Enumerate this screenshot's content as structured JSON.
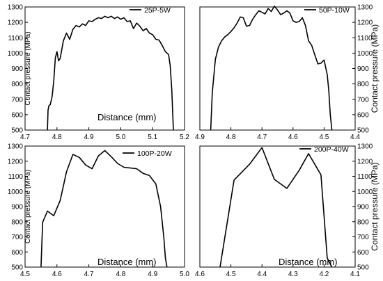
{
  "chart_data": [
    {
      "id": "p1",
      "type": "line",
      "xlabel": "Distance (mm)",
      "ylabel": "Contact pressure (MPa)",
      "xlim": [
        4.7,
        5.2
      ],
      "ylim": [
        500,
        1300
      ],
      "xticks": [
        "4.7",
        "4.8",
        "4.9",
        "5.0",
        "5.1",
        "5.2"
      ],
      "yticks": [
        "500",
        "600",
        "700",
        "800",
        "900",
        "1000",
        "1100",
        "1200",
        "1300"
      ],
      "series": [
        {
          "name": "25P-5W",
          "color": "#000000",
          "x": [
            4.77,
            4.772,
            4.775,
            4.779,
            4.785,
            4.79,
            4.795,
            4.8,
            4.805,
            4.81,
            4.82,
            4.83,
            4.835,
            4.84,
            4.85,
            4.86,
            4.87,
            4.88,
            4.89,
            4.9,
            4.91,
            4.92,
            4.93,
            4.94,
            4.95,
            4.96,
            4.97,
            4.98,
            4.99,
            5.0,
            5.01,
            5.02,
            5.03,
            5.04,
            5.05,
            5.06,
            5.07,
            5.08,
            5.09,
            5.1,
            5.11,
            5.12,
            5.13,
            5.14,
            5.15,
            5.155,
            5.16,
            5.163,
            5.165
          ],
          "y": [
            500,
            630,
            660,
            665,
            720,
            820,
            970,
            1010,
            950,
            965,
            1080,
            1130,
            1110,
            1090,
            1155,
            1180,
            1170,
            1190,
            1180,
            1210,
            1205,
            1220,
            1230,
            1225,
            1240,
            1230,
            1240,
            1225,
            1235,
            1220,
            1230,
            1205,
            1210,
            1160,
            1195,
            1175,
            1145,
            1160,
            1130,
            1120,
            1090,
            1085,
            1050,
            1010,
            990,
            920,
            760,
            600,
            500
          ]
        }
      ]
    },
    {
      "id": "p2",
      "type": "line",
      "xlabel": "",
      "ylabel": "Contact pressure (MPa)",
      "xlim": [
        4.9,
        4.4
      ],
      "ylim": [
        500,
        1300
      ],
      "xticks": [
        "4.9",
        "4.8",
        "4.7",
        "4.6",
        "4.5",
        "4.4"
      ],
      "yticks": [
        "500",
        "600",
        "700",
        "800",
        "900",
        "1000",
        "1100",
        "1200",
        "1300"
      ],
      "series": [
        {
          "name": "50P-10W",
          "color": "#000000",
          "x": [
            4.865,
            4.86,
            4.85,
            4.84,
            4.83,
            4.82,
            4.81,
            4.8,
            4.79,
            4.78,
            4.77,
            4.76,
            4.75,
            4.74,
            4.73,
            4.72,
            4.71,
            4.7,
            4.69,
            4.68,
            4.67,
            4.66,
            4.65,
            4.64,
            4.63,
            4.62,
            4.61,
            4.6,
            4.59,
            4.58,
            4.57,
            4.56,
            4.55,
            4.54,
            4.53,
            4.52,
            4.51,
            4.5,
            4.49,
            4.485,
            4.48,
            4.475
          ],
          "y": [
            500,
            740,
            960,
            1040,
            1080,
            1105,
            1120,
            1140,
            1165,
            1195,
            1235,
            1230,
            1175,
            1180,
            1220,
            1250,
            1275,
            1265,
            1255,
            1290,
            1270,
            1305,
            1280,
            1250,
            1260,
            1275,
            1260,
            1210,
            1200,
            1205,
            1230,
            1180,
            1080,
            1050,
            990,
            930,
            935,
            955,
            860,
            760,
            600,
            500
          ]
        }
      ]
    },
    {
      "id": "p3",
      "type": "line",
      "xlabel": "Distance (mm)",
      "ylabel": "Contact pressure (MPa)",
      "xlim": [
        4.5,
        5.0
      ],
      "ylim": [
        500,
        1300
      ],
      "xticks": [
        "4.5",
        "4.6",
        "4.7",
        "4.8",
        "4.9",
        "5.0"
      ],
      "yticks": [
        "500",
        "600",
        "700",
        "800",
        "900",
        "1000",
        "1100",
        "1200",
        "1300"
      ],
      "series": [
        {
          "name": "100P-20W",
          "color": "#000000",
          "x": [
            4.55,
            4.555,
            4.57,
            4.59,
            4.61,
            4.63,
            4.65,
            4.67,
            4.69,
            4.71,
            4.73,
            4.75,
            4.77,
            4.79,
            4.81,
            4.85,
            4.87,
            4.89,
            4.91,
            4.925,
            4.935,
            4.94,
            4.945
          ],
          "y": [
            500,
            795,
            870,
            840,
            940,
            1130,
            1245,
            1225,
            1175,
            1150,
            1235,
            1270,
            1230,
            1185,
            1160,
            1150,
            1120,
            1105,
            1050,
            900,
            700,
            560,
            500
          ]
        }
      ]
    },
    {
      "id": "p4",
      "type": "line",
      "xlabel": "Distance (mm)",
      "ylabel": "Contact pressure (MPa)",
      "xlim": [
        4.6,
        4.1
      ],
      "ylim": [
        500,
        1300
      ],
      "xticks": [
        "4.6",
        "4.5",
        "4.4",
        "4.3",
        "4.2",
        "4.1"
      ],
      "yticks": [
        "500",
        "600",
        "700",
        "800",
        "900",
        "1000",
        "1100",
        "1200",
        "1300"
      ],
      "series": [
        {
          "name": "200P-40W",
          "color": "#000000",
          "x": [
            4.535,
            4.49,
            4.44,
            4.4,
            4.36,
            4.32,
            4.28,
            4.25,
            4.21,
            4.19,
            4.175
          ],
          "y": [
            500,
            1075,
            1180,
            1290,
            1080,
            1020,
            1140,
            1250,
            1110,
            560,
            500
          ]
        }
      ]
    }
  ]
}
